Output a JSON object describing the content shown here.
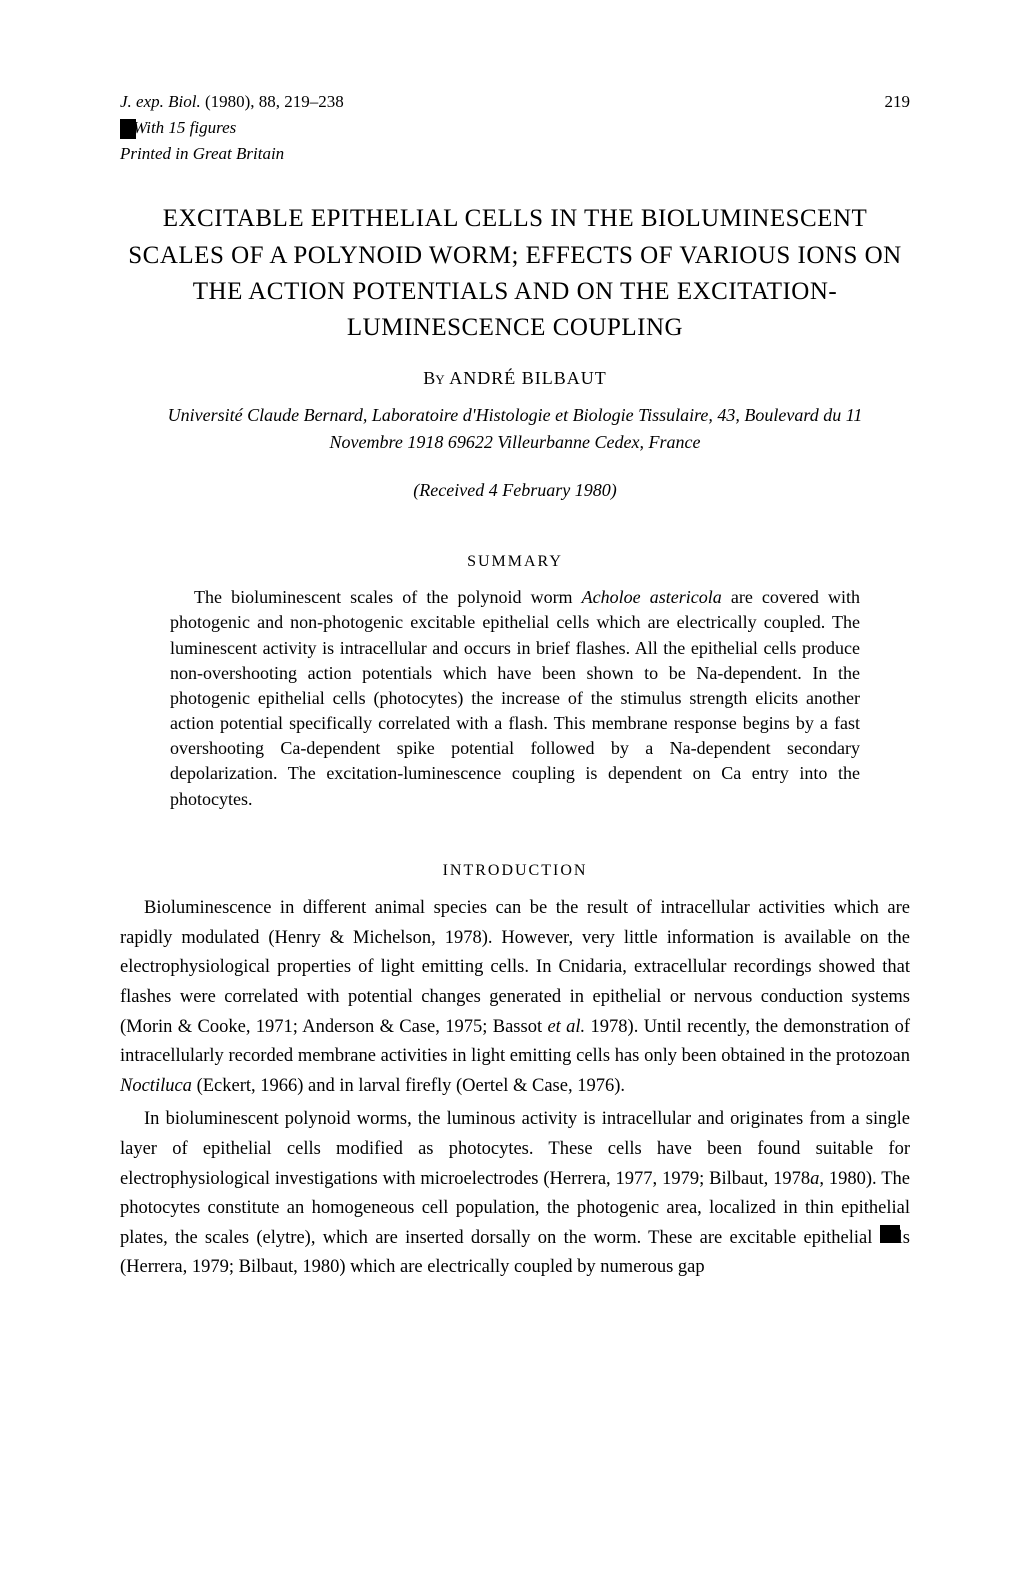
{
  "header": {
    "journal_ref_prefix": "J. exp. Biol.",
    "journal_ref_year": " (1980), ",
    "journal_vol": "88",
    "journal_pages": ", 219–238",
    "page_number": "219",
    "figures_line": "With 15 figures",
    "printed_line": "Printed in Great Britain"
  },
  "title": "EXCITABLE EPITHELIAL CELLS IN THE BIOLUMINESCENT SCALES OF A POLYNOID WORM; EFFECTS OF VARIOUS IONS ON THE ACTION POTENTIALS AND ON THE EXCITATION-LUMINESCENCE COUPLING",
  "author": {
    "by": "By",
    "name": "ANDRÉ BILBAUT"
  },
  "affiliation": "Université Claude Bernard, Laboratoire d'Histologie et Biologie Tissulaire, 43, Boulevard du 11 Novembre 1918 69622 Villeurbanne Cedex, France",
  "received": "(Received 4 February 1980)",
  "summary": {
    "heading": "SUMMARY",
    "text_1": "The bioluminescent scales of the polynoid worm ",
    "species": "Acholoe astericola",
    "text_2": " are covered with photogenic and non-photogenic excitable epithelial cells which are electrically coupled. The luminescent activity is intracellular and occurs in brief flashes. All the epithelial cells produce non-overshooting action potentials which have been shown to be Na-dependent. In the photogenic epithelial cells (photocytes) the increase of the stimulus strength elicits another action potential specifically correlated with a flash. This membrane response begins by a fast overshooting Ca-dependent spike potential followed by a Na-dependent secondary depolarization. The excitation-luminescence coupling is dependent on Ca entry into the photocytes."
  },
  "introduction": {
    "heading": "INTRODUCTION",
    "para1_a": "Bioluminescence in different animal species can be the result of intracellular activities which are rapidly modulated (Henry & Michelson, 1978). However, very little information is available on the electrophysiological properties of light emitting cells. In Cnidaria, extracellular recordings showed that flashes were correlated with potential changes generated in epithelial or nervous conduction systems (Morin & Cooke, 1971; Anderson & Case, 1975; Bassot ",
    "para1_etal": "et al.",
    "para1_b": " 1978). Until recently, the demonstration of intracellularly recorded membrane activities in light emitting cells has only been obtained in the protozoan ",
    "para1_noctiluca": "Noctiluca",
    "para1_c": " (Eckert, 1966) and in larval firefly (Oertel & Case, 1976).",
    "para2_a": "In bioluminescent polynoid worms, the luminous activity is intracellular and originates from a single layer of epithelial cells modified as photocytes. These cells have been found suitable for electrophysiological investigations with microelectrodes (Herrera, 1977, 1979; Bilbaut, 1978",
    "para2_ital_a": "a",
    "para2_b": ", 1980). The photocytes constitute an homogeneous cell population, the photogenic area, localized in thin epithelial plates, the scales (elytre), which are inserted dorsally on the worm. These are excitable epithelial ",
    "para2_c": "ls (Herrera, 1979; Bilbaut, 1980) which are electrically coupled by numerous gap"
  }
}
